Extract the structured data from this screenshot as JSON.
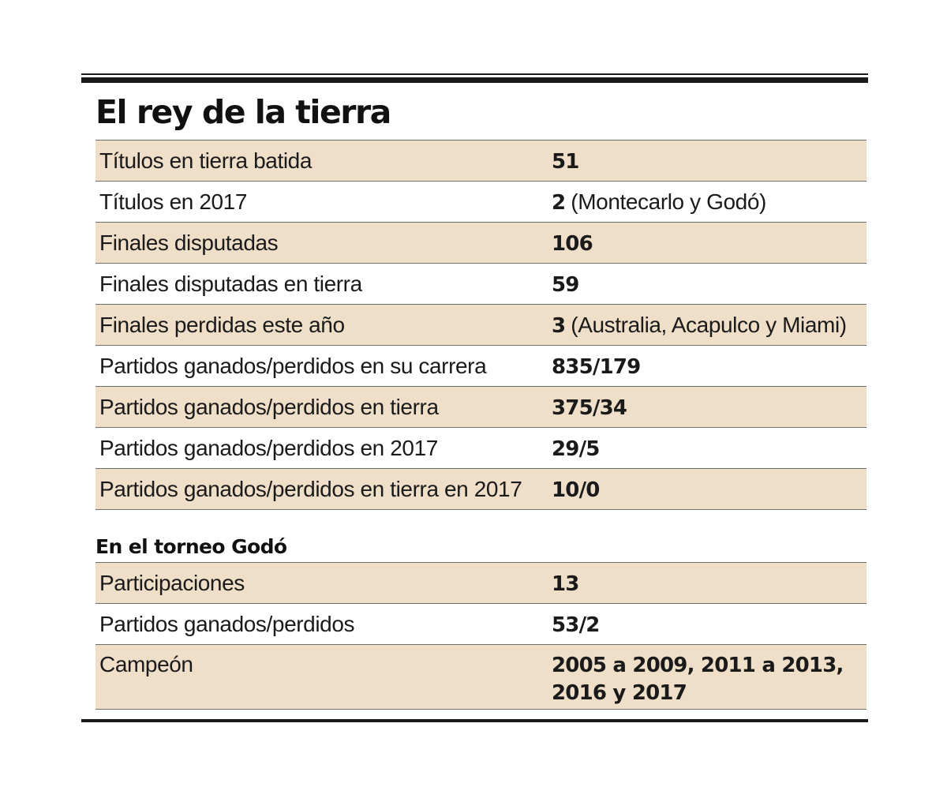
{
  "title": "El rey de la tierra",
  "career": [
    {
      "label": "Títulos en tierra batida",
      "value": "51",
      "note": ""
    },
    {
      "label": "Títulos en 2017",
      "value": "2",
      "note": "(Montecarlo y Godó)"
    },
    {
      "label": "Finales disputadas",
      "value": "106",
      "note": ""
    },
    {
      "label": "Finales disputadas en tierra",
      "value": "59",
      "note": ""
    },
    {
      "label": "Finales perdidas este año",
      "value": "3",
      "note": "(Australia, Acapulco y Miami)"
    },
    {
      "label": "Partidos ganados/perdidos en su carrera",
      "value": "835/179",
      "note": ""
    },
    {
      "label": "Partidos ganados/perdidos en tierra",
      "value": "375/34",
      "note": ""
    },
    {
      "label": "Partidos ganados/perdidos en 2017",
      "value": "29/5",
      "note": ""
    },
    {
      "label": "Partidos ganados/perdidos en tierra en 2017",
      "value": "10/0",
      "note": ""
    }
  ],
  "godo": {
    "title": "En el torneo Godó",
    "rows": [
      {
        "label": "Participaciones",
        "value": "13"
      },
      {
        "label": "Partidos ganados/perdidos",
        "value": "53/2"
      },
      {
        "label": "Campeón",
        "value_line1": "2005 a 2009, 2011 a 2013,",
        "value_line2": "2016 y 2017"
      }
    ]
  },
  "colors": {
    "row_shade": "#efdec8",
    "rule": "#1a1a1a",
    "divider": "#6e6e6e"
  }
}
